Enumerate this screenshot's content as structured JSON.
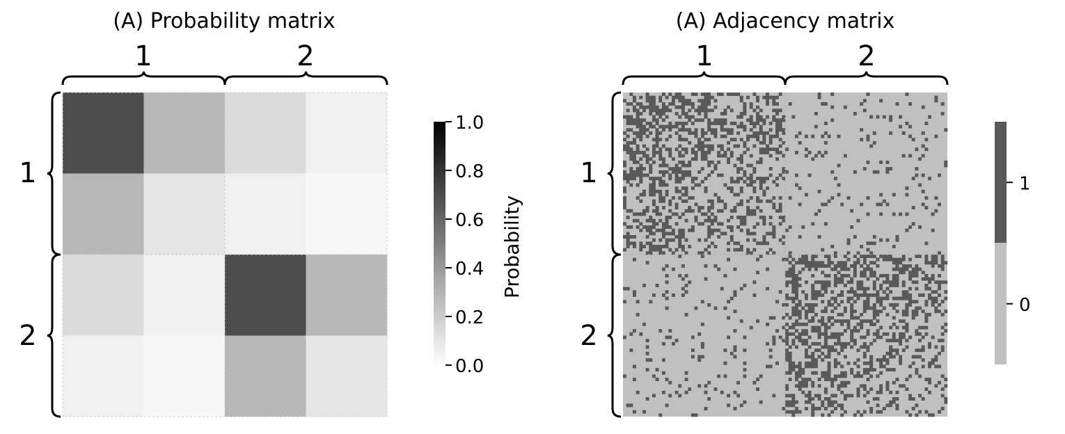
{
  "chart_data": [
    {
      "type": "heatmap",
      "title": "(A) Probability matrix",
      "block_labels": [
        "1",
        "2"
      ],
      "rows": 4,
      "cols": 4,
      "values": [
        [
          0.7,
          0.28,
          0.14,
          0.06
        ],
        [
          0.28,
          0.1,
          0.06,
          0.03
        ],
        [
          0.14,
          0.06,
          0.7,
          0.28
        ],
        [
          0.06,
          0.03,
          0.28,
          0.1
        ]
      ],
      "colorbar": {
        "label": "Probability",
        "range": [
          0.0,
          1.0
        ],
        "ticks": [
          "0.0",
          "0.2",
          "0.4",
          "0.6",
          "0.8",
          "1.0"
        ],
        "tick_values": [
          0.0,
          0.2,
          0.4,
          0.6,
          0.8,
          1.0
        ],
        "colormap": "greys (white → black)"
      },
      "grid": false
    },
    {
      "type": "heatmap",
      "title": "(A) Adjacency matrix",
      "block_labels": [
        "1",
        "2"
      ],
      "nodes": 100,
      "block_sizes": [
        50,
        50
      ],
      "within_block_edge_probability": 0.38,
      "between_block_edge_probability": 0.08,
      "colorbar": {
        "ticks": [
          "0",
          "1"
        ],
        "tick_values": [
          0,
          1
        ],
        "colors": {
          "0": "#c0c0c0",
          "1": "#595959"
        }
      },
      "grid": false
    }
  ]
}
